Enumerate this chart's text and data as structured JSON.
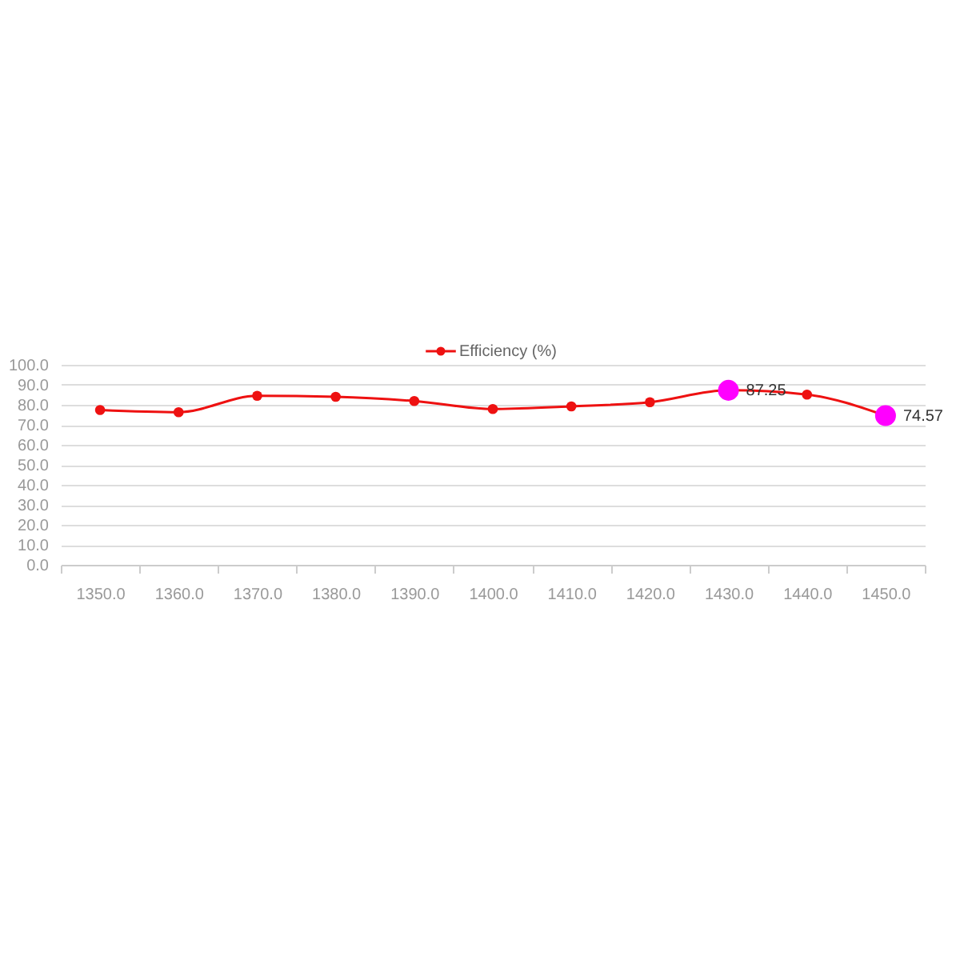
{
  "chart_data": {
    "type": "line",
    "categories": [
      "1350.0",
      "1360.0",
      "1370.0",
      "1380.0",
      "1390.0",
      "1400.0",
      "1410.0",
      "1420.0",
      "1430.0",
      "1440.0",
      "1450.0"
    ],
    "series": [
      {
        "name": "Efficiency (%)",
        "color": "#ee1111",
        "values": [
          77.4,
          76.3,
          84.5,
          84.0,
          81.9,
          77.9,
          79.2,
          81.3,
          87.25,
          85.1,
          74.57
        ],
        "colors": [
          "#ee1111",
          "#ee1111",
          "#ee1111",
          "#ee1111",
          "#ee1111",
          "#ee1111",
          "#ee1111",
          "#ee1111",
          "#ff00ff",
          "#ee1111",
          "#ff00ff"
        ],
        "value_labels": [
          null,
          null,
          null,
          null,
          null,
          null,
          null,
          null,
          "87.25",
          null,
          "74.57"
        ]
      }
    ],
    "ylim": [
      0,
      100
    ],
    "yticks": [
      {
        "value": 0,
        "label": "0.0"
      },
      {
        "value": 10,
        "label": "10.0"
      },
      {
        "value": 20,
        "label": "20.0"
      },
      {
        "value": 30,
        "label": "30.0"
      },
      {
        "value": 40,
        "label": "40.0"
      },
      {
        "value": 50,
        "label": "50.0"
      },
      {
        "value": 60,
        "label": "60.0"
      },
      {
        "value": 70,
        "label": "70.0"
      },
      {
        "value": 80,
        "label": "80.0"
      },
      {
        "value": 90,
        "label": "90.0"
      },
      {
        "value": 100,
        "label": "100.0"
      }
    ],
    "grid": "y",
    "legend": "top",
    "marker": "circle",
    "line_style": "solid"
  }
}
